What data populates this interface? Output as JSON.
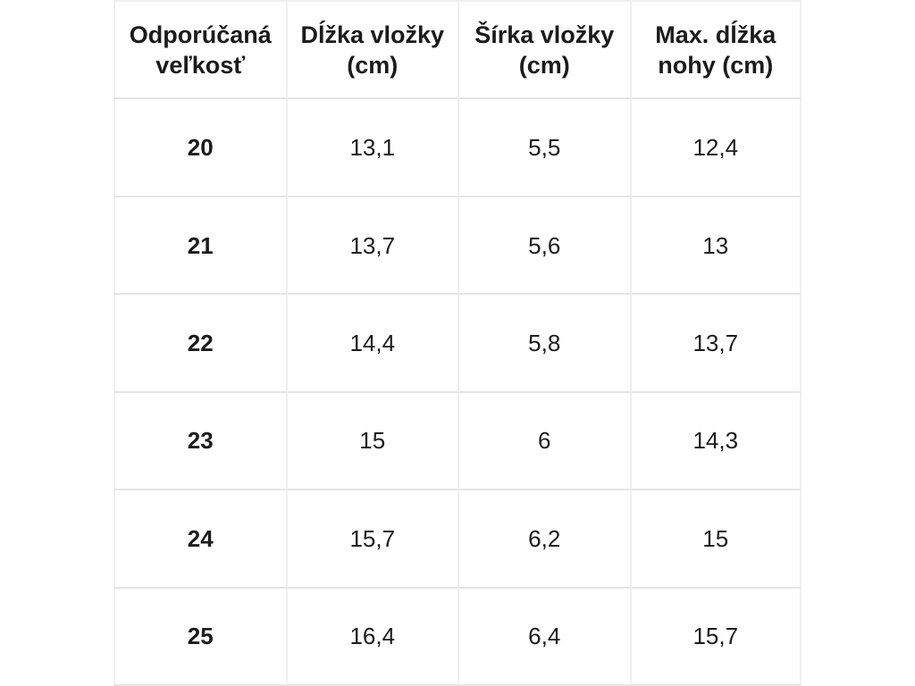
{
  "page": {
    "background_color": "#ffffff",
    "grid_line_color": "#e5e5e5",
    "text_color": "#1b1b1b"
  },
  "chart_data": {
    "type": "table",
    "columns": [
      "Odporúčaná\nveľkosť",
      "Dĺžka vložky\n(cm)",
      "Šírka vložky\n(cm)",
      "Max. dĺžka\nnohy (cm)"
    ],
    "columns_plain": [
      "Odporúčaná veľkosť",
      "Dĺžka vložky (cm)",
      "Šírka vložky (cm)",
      "Max. dĺžka nohy (cm)"
    ],
    "rows": [
      [
        "20",
        "13,1",
        "5,5",
        "12,4"
      ],
      [
        "21",
        "13,7",
        "5,6",
        "13"
      ],
      [
        "22",
        "14,4",
        "5,8",
        "13,7"
      ],
      [
        "23",
        "15",
        "6",
        "14,3"
      ],
      [
        "24",
        "15,7",
        "6,2",
        "15"
      ],
      [
        "25",
        "16,4",
        "6,4",
        "15,7"
      ]
    ]
  }
}
